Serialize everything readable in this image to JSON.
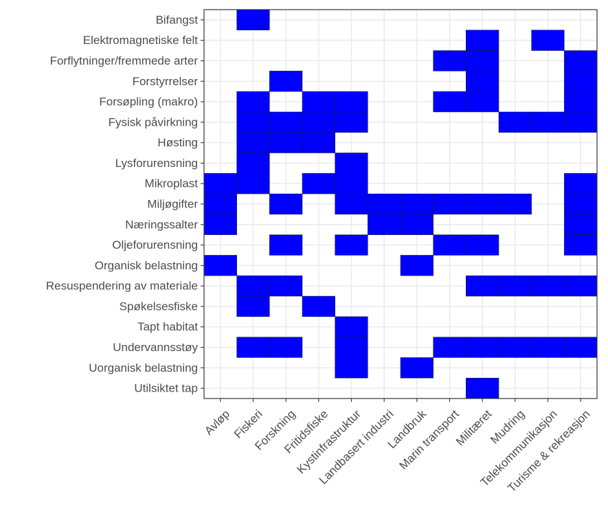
{
  "chart_data": {
    "type": "heatmap",
    "title": "",
    "xlabel": "",
    "ylabel": "",
    "fill_color": "#0000ff",
    "legend": "none",
    "grid": true,
    "x_categories": [
      "Avløp",
      "Fiskeri",
      "Forskning",
      "Fritidsfiske",
      "Kystinfrastruktur",
      "Landbasert industri",
      "Landbruk",
      "Marin transport",
      "Militæret",
      "Mudring",
      "Telekommunikasjon",
      "Turisme & rekreasjon"
    ],
    "y_categories": [
      "Bifangst",
      "Elektromagnetiske felt",
      "Forflytninger/fremmede arter",
      "Forstyrrelser",
      "Forsøpling (makro)",
      "Fysisk påvirkning",
      "Høsting",
      "Lysforurensning",
      "Mikroplast",
      "Miljøgifter",
      "Næringssalter",
      "Oljeforurensning",
      "Organisk belastning",
      "Resuspendering av materiale",
      "Spøkelsesfiske",
      "Tapt habitat",
      "Undervannsstøy",
      "Uorganisk belastning",
      "Utilsiktet tap"
    ],
    "cells": [
      {
        "x": "Fiskeri",
        "y": "Bifangst"
      },
      {
        "x": "Militæret",
        "y": "Elektromagnetiske felt"
      },
      {
        "x": "Telekommunikasjon",
        "y": "Elektromagnetiske felt"
      },
      {
        "x": "Marin transport",
        "y": "Forflytninger/fremmede arter"
      },
      {
        "x": "Militæret",
        "y": "Forflytninger/fremmede arter"
      },
      {
        "x": "Turisme & rekreasjon",
        "y": "Forflytninger/fremmede arter"
      },
      {
        "x": "Forskning",
        "y": "Forstyrrelser"
      },
      {
        "x": "Militæret",
        "y": "Forstyrrelser"
      },
      {
        "x": "Turisme & rekreasjon",
        "y": "Forstyrrelser"
      },
      {
        "x": "Fiskeri",
        "y": "Forsøpling (makro)"
      },
      {
        "x": "Fritidsfiske",
        "y": "Forsøpling (makro)"
      },
      {
        "x": "Kystinfrastruktur",
        "y": "Forsøpling (makro)"
      },
      {
        "x": "Marin transport",
        "y": "Forsøpling (makro)"
      },
      {
        "x": "Militæret",
        "y": "Forsøpling (makro)"
      },
      {
        "x": "Turisme & rekreasjon",
        "y": "Forsøpling (makro)"
      },
      {
        "x": "Fiskeri",
        "y": "Fysisk påvirkning"
      },
      {
        "x": "Forskning",
        "y": "Fysisk påvirkning"
      },
      {
        "x": "Fritidsfiske",
        "y": "Fysisk påvirkning"
      },
      {
        "x": "Kystinfrastruktur",
        "y": "Fysisk påvirkning"
      },
      {
        "x": "Mudring",
        "y": "Fysisk påvirkning"
      },
      {
        "x": "Telekommunikasjon",
        "y": "Fysisk påvirkning"
      },
      {
        "x": "Turisme & rekreasjon",
        "y": "Fysisk påvirkning"
      },
      {
        "x": "Fiskeri",
        "y": "Høsting"
      },
      {
        "x": "Forskning",
        "y": "Høsting"
      },
      {
        "x": "Fritidsfiske",
        "y": "Høsting"
      },
      {
        "x": "Fiskeri",
        "y": "Lysforurensning"
      },
      {
        "x": "Kystinfrastruktur",
        "y": "Lysforurensning"
      },
      {
        "x": "Avløp",
        "y": "Mikroplast"
      },
      {
        "x": "Fiskeri",
        "y": "Mikroplast"
      },
      {
        "x": "Fritidsfiske",
        "y": "Mikroplast"
      },
      {
        "x": "Kystinfrastruktur",
        "y": "Mikroplast"
      },
      {
        "x": "Turisme & rekreasjon",
        "y": "Mikroplast"
      },
      {
        "x": "Avløp",
        "y": "Miljøgifter"
      },
      {
        "x": "Forskning",
        "y": "Miljøgifter"
      },
      {
        "x": "Kystinfrastruktur",
        "y": "Miljøgifter"
      },
      {
        "x": "Landbasert industri",
        "y": "Miljøgifter"
      },
      {
        "x": "Landbruk",
        "y": "Miljøgifter"
      },
      {
        "x": "Marin transport",
        "y": "Miljøgifter"
      },
      {
        "x": "Militæret",
        "y": "Miljøgifter"
      },
      {
        "x": "Mudring",
        "y": "Miljøgifter"
      },
      {
        "x": "Turisme & rekreasjon",
        "y": "Miljøgifter"
      },
      {
        "x": "Avløp",
        "y": "Næringssalter"
      },
      {
        "x": "Landbasert industri",
        "y": "Næringssalter"
      },
      {
        "x": "Landbruk",
        "y": "Næringssalter"
      },
      {
        "x": "Turisme & rekreasjon",
        "y": "Næringssalter"
      },
      {
        "x": "Forskning",
        "y": "Oljeforurensning"
      },
      {
        "x": "Kystinfrastruktur",
        "y": "Oljeforurensning"
      },
      {
        "x": "Marin transport",
        "y": "Oljeforurensning"
      },
      {
        "x": "Militæret",
        "y": "Oljeforurensning"
      },
      {
        "x": "Turisme & rekreasjon",
        "y": "Oljeforurensning"
      },
      {
        "x": "Avløp",
        "y": "Organisk belastning"
      },
      {
        "x": "Landbruk",
        "y": "Organisk belastning"
      },
      {
        "x": "Fiskeri",
        "y": "Resuspendering av materiale"
      },
      {
        "x": "Forskning",
        "y": "Resuspendering av materiale"
      },
      {
        "x": "Militæret",
        "y": "Resuspendering av materiale"
      },
      {
        "x": "Mudring",
        "y": "Resuspendering av materiale"
      },
      {
        "x": "Telekommunikasjon",
        "y": "Resuspendering av materiale"
      },
      {
        "x": "Turisme & rekreasjon",
        "y": "Resuspendering av materiale"
      },
      {
        "x": "Fiskeri",
        "y": "Spøkelsesfiske"
      },
      {
        "x": "Fritidsfiske",
        "y": "Spøkelsesfiske"
      },
      {
        "x": "Kystinfrastruktur",
        "y": "Tapt habitat"
      },
      {
        "x": "Fiskeri",
        "y": "Undervannsstøy"
      },
      {
        "x": "Forskning",
        "y": "Undervannsstøy"
      },
      {
        "x": "Kystinfrastruktur",
        "y": "Undervannsstøy"
      },
      {
        "x": "Marin transport",
        "y": "Undervannsstøy"
      },
      {
        "x": "Militæret",
        "y": "Undervannsstøy"
      },
      {
        "x": "Mudring",
        "y": "Undervannsstøy"
      },
      {
        "x": "Telekommunikasjon",
        "y": "Undervannsstøy"
      },
      {
        "x": "Turisme & rekreasjon",
        "y": "Undervannsstøy"
      },
      {
        "x": "Kystinfrastruktur",
        "y": "Uorganisk belastning"
      },
      {
        "x": "Landbruk",
        "y": "Uorganisk belastning"
      },
      {
        "x": "Militæret",
        "y": "Utilsiktet tap"
      }
    ]
  }
}
